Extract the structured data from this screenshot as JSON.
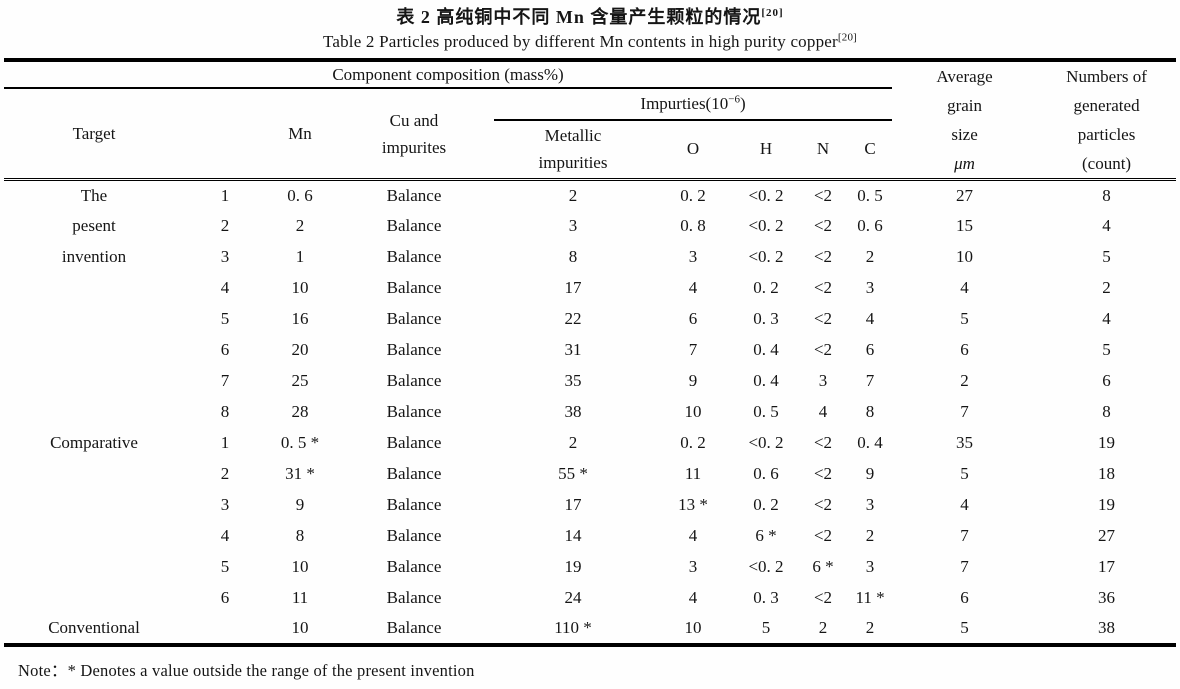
{
  "title": {
    "zh": "表 2  高纯铜中不同 Mn 含量产生颗粒的情况",
    "zh_ref": "[20]",
    "en": "Table 2  Particles produced by different Mn contents in high purity copper",
    "en_ref": "[20]"
  },
  "header": {
    "component_composition": "Component composition (mass%)",
    "target": "Target",
    "no": "",
    "mn": "Mn",
    "cu_line1": "Cu and",
    "cu_line2": "impurites",
    "impurities_prefix": "Impurties(10",
    "impurities_sup": "−6",
    "impurities_suffix": ")",
    "metallic_line1": "Metallic",
    "metallic_line2": "impurities",
    "o": "O",
    "h": "H",
    "n": "N",
    "c": "C",
    "grain_lines": [
      "Average",
      "grain",
      "size",
      "μm"
    ],
    "particles_lines": [
      "Numbers of",
      "generated",
      "particles",
      "(count)"
    ]
  },
  "rows": [
    {
      "target": "The",
      "no": "1",
      "mn": "0. 6",
      "cu": "Balance",
      "metallic": "2",
      "o": "0. 2",
      "h": "<0. 2",
      "n": "<2",
      "c": "0. 5",
      "grain": "27",
      "count": "8"
    },
    {
      "target": "pesent",
      "no": "2",
      "mn": "2",
      "cu": "Balance",
      "metallic": "3",
      "o": "0. 8",
      "h": "<0. 2",
      "n": "<2",
      "c": "0. 6",
      "grain": "15",
      "count": "4"
    },
    {
      "target": "invention",
      "no": "3",
      "mn": "1",
      "cu": "Balance",
      "metallic": "8",
      "o": "3",
      "h": "<0. 2",
      "n": "<2",
      "c": "2",
      "grain": "10",
      "count": "5"
    },
    {
      "target": "",
      "no": "4",
      "mn": "10",
      "cu": "Balance",
      "metallic": "17",
      "o": "4",
      "h": "0. 2",
      "n": "<2",
      "c": "3",
      "grain": "4",
      "count": "2"
    },
    {
      "target": "",
      "no": "5",
      "mn": "16",
      "cu": "Balance",
      "metallic": "22",
      "o": "6",
      "h": "0. 3",
      "n": "<2",
      "c": "4",
      "grain": "5",
      "count": "4"
    },
    {
      "target": "",
      "no": "6",
      "mn": "20",
      "cu": "Balance",
      "metallic": "31",
      "o": "7",
      "h": "0. 4",
      "n": "<2",
      "c": "6",
      "grain": "6",
      "count": "5"
    },
    {
      "target": "",
      "no": "7",
      "mn": "25",
      "cu": "Balance",
      "metallic": "35",
      "o": "9",
      "h": "0. 4",
      "n": "3",
      "c": "7",
      "grain": "2",
      "count": "6"
    },
    {
      "target": "",
      "no": "8",
      "mn": "28",
      "cu": "Balance",
      "metallic": "38",
      "o": "10",
      "h": "0. 5",
      "n": "4",
      "c": "8",
      "grain": "7",
      "count": "8"
    },
    {
      "target": "Comparative",
      "no": "1",
      "mn": "0. 5 *",
      "cu": "Balance",
      "metallic": "2",
      "o": "0. 2",
      "h": "<0. 2",
      "n": "<2",
      "c": "0. 4",
      "grain": "35",
      "count": "19"
    },
    {
      "target": "",
      "no": "2",
      "mn": "31 *",
      "cu": "Balance",
      "metallic": "55 *",
      "o": "11",
      "h": "0. 6",
      "n": "<2",
      "c": "9",
      "grain": "5",
      "count": "18"
    },
    {
      "target": "",
      "no": "3",
      "mn": "9",
      "cu": "Balance",
      "metallic": "17",
      "o": "13 *",
      "h": "0. 2",
      "n": "<2",
      "c": "3",
      "grain": "4",
      "count": "19"
    },
    {
      "target": "",
      "no": "4",
      "mn": "8",
      "cu": "Balance",
      "metallic": "14",
      "o": "4",
      "h": "6 *",
      "n": "<2",
      "c": "2",
      "grain": "7",
      "count": "27"
    },
    {
      "target": "",
      "no": "5",
      "mn": "10",
      "cu": "Balance",
      "metallic": "19",
      "o": "3",
      "h": "<0. 2",
      "n": "6 *",
      "c": "3",
      "grain": "7",
      "count": "17"
    },
    {
      "target": "",
      "no": "6",
      "mn": "11",
      "cu": "Balance",
      "metallic": "24",
      "o": "4",
      "h": "0. 3",
      "n": "<2",
      "c": "11 *",
      "grain": "6",
      "count": "36"
    },
    {
      "target": "Conventional",
      "no": "",
      "mn": "10",
      "cu": "Balance",
      "metallic": "110 *",
      "o": "10",
      "h": "5",
      "n": "2",
      "c": "2",
      "grain": "5",
      "count": "38"
    }
  ],
  "note": "Note：* Denotes a value outside the range of the present invention"
}
